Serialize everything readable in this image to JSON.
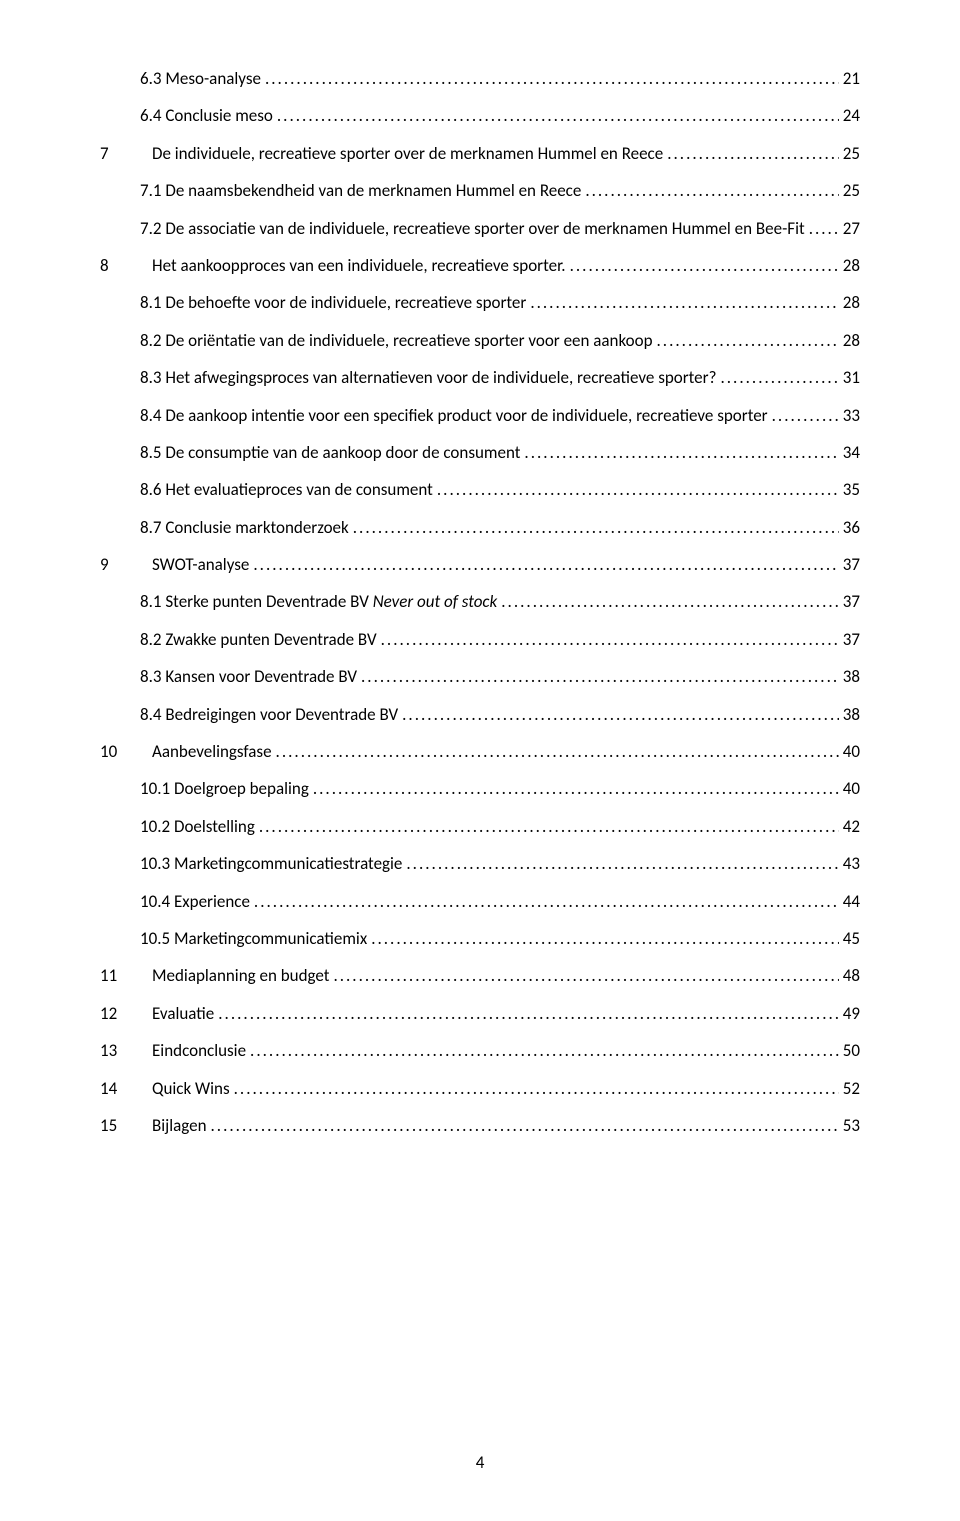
{
  "page_number": "4",
  "entries": [
    {
      "level": 2,
      "num": "",
      "title": "6.3 Meso-analyse",
      "page": "21"
    },
    {
      "level": 2,
      "num": "",
      "title": "6.4 Conclusie meso",
      "page": "24"
    },
    {
      "level": 1,
      "num": "7",
      "title": "De individuele, recreatieve sporter over de merknamen Hummel en Reece",
      "page": "25"
    },
    {
      "level": 2,
      "num": "",
      "title": "7.1 De naamsbekendheid van de merknamen Hummel en Reece",
      "page": "25"
    },
    {
      "level": 2,
      "num": "",
      "title": "7.2 De associatie van de individuele, recreatieve sporter over de merknamen Hummel en Bee-Fit",
      "page": "27"
    },
    {
      "level": 1,
      "num": "8",
      "title": "Het aankoopproces van een individuele, recreatieve sporter.",
      "page": "28"
    },
    {
      "level": 2,
      "num": "",
      "title": "8.1 De behoefte voor de individuele, recreatieve sporter",
      "page": "28"
    },
    {
      "level": 2,
      "num": "",
      "title": "8.2 De oriëntatie van de individuele, recreatieve sporter voor een aankoop",
      "page": "28"
    },
    {
      "level": 2,
      "num": "",
      "title": "8.3 Het afwegingsproces van alternatieven voor de individuele, recreatieve sporter?",
      "page": "31"
    },
    {
      "level": 2,
      "num": "",
      "title": "8.4 De aankoop intentie voor een specifiek product voor de individuele, recreatieve sporter",
      "page": "33"
    },
    {
      "level": 2,
      "num": "",
      "title": "8.5 De consumptie van de aankoop door de consument",
      "page": "34"
    },
    {
      "level": 2,
      "num": "",
      "title": "8.6 Het evaluatieproces van de consument",
      "page": "35"
    },
    {
      "level": 2,
      "num": "",
      "title": "8.7 Conclusie marktonderzoek",
      "page": "36"
    },
    {
      "level": 1,
      "num": "9",
      "title": "SWOT-analyse",
      "page": "37"
    },
    {
      "level": 2,
      "num": "",
      "title_parts": [
        {
          "text": "8.1 Sterke punten Deventrade BV "
        },
        {
          "text": "Never out of stock",
          "italic": true
        }
      ],
      "page": "37"
    },
    {
      "level": 2,
      "num": "",
      "title": "8.2 Zwakke punten Deventrade BV",
      "page": "37"
    },
    {
      "level": 2,
      "num": "",
      "title": "8.3 Kansen voor Deventrade BV",
      "page": "38"
    },
    {
      "level": 2,
      "num": "",
      "title": "8.4 Bedreigingen voor Deventrade BV",
      "page": "38"
    },
    {
      "level": 1,
      "num": "10",
      "title": "Aanbevelingsfase",
      "page": "40"
    },
    {
      "level": 2,
      "num": "",
      "title": "10.1 Doelgroep bepaling",
      "page": "40"
    },
    {
      "level": 2,
      "num": "",
      "title": "10.2 Doelstelling",
      "page": "42"
    },
    {
      "level": 2,
      "num": "",
      "title": "10.3 Marketingcommunicatiestrategie",
      "page": "43"
    },
    {
      "level": 2,
      "num": "",
      "title": "10.4 Experience",
      "page": "44"
    },
    {
      "level": 2,
      "num": "",
      "title": "10.5 Marketingcommunicatiemix",
      "page": "45"
    },
    {
      "level": 1,
      "num": "11",
      "title": "Mediaplanning en budget",
      "page": "48"
    },
    {
      "level": 1,
      "num": "12",
      "title": "Evaluatie",
      "page": "49"
    },
    {
      "level": 1,
      "num": "13",
      "title": "Eindconclusie",
      "page": "50"
    },
    {
      "level": 1,
      "num": "14",
      "title": "Quick Wins",
      "page": "52"
    },
    {
      "level": 1,
      "num": "15",
      "title": "Bijlagen",
      "page": "53"
    }
  ]
}
